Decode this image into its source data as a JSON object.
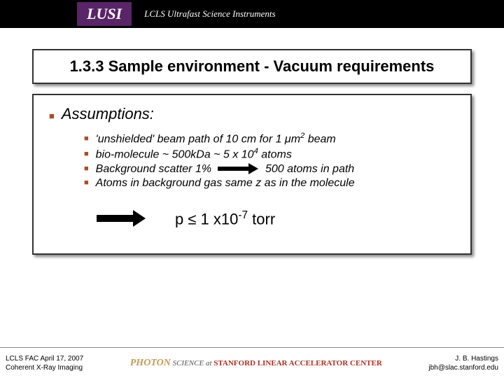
{
  "header": {
    "logo_text": "LUSI",
    "subtitle": "LCLS Ultrafast Science Instruments"
  },
  "title": "1.3.3 Sample environment - Vacuum requirements",
  "assumptions": {
    "heading": "Assumptions:",
    "bullets": {
      "b1_pre": "'unshielded' beam path of 10 cm for 1 μm",
      "b1_sup": "2",
      "b1_post": " beam",
      "b2_pre": "bio-molecule ~ 500kDa ~ 5 x 10",
      "b2_sup": "4",
      "b2_post": " atoms",
      "b3_pre": "Background scatter 1%",
      "b3_post": "500 atoms in path",
      "b4": "Atoms in background gas same z as in the molecule"
    }
  },
  "conclusion": {
    "pre": "p ≤ 1 x10",
    "sup": "-7",
    "post": " torr"
  },
  "footer": {
    "left_line1": "LCLS FAC April 17, 2007",
    "left_line2": "Coherent X-Ray Imaging",
    "center_photon": "PHOTON",
    "center_science": " SCIENCE",
    "center_at": " at ",
    "center_slac": "STANFORD LINEAR ACCELERATOR CENTER",
    "right_line1": "J. B. Hastings",
    "right_line2": "jbh@slac.stanford.edu"
  },
  "colors": {
    "bullet": "#b34a22",
    "header_bg": "#000000",
    "logo_bg": "#5a2469"
  }
}
